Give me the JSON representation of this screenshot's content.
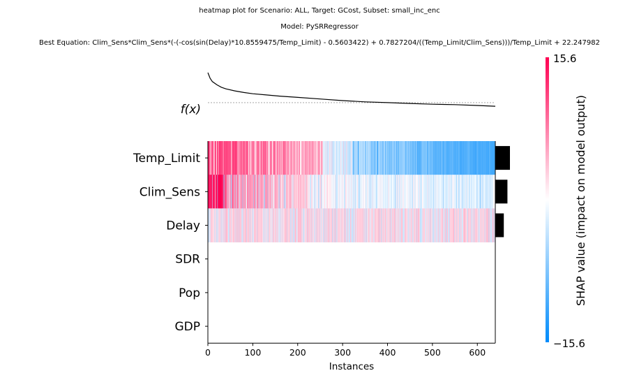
{
  "titles": {
    "line1": "heatmap plot for Scenario: ALL, Target: GCost, Subset: small_inc_enc",
    "line2": "Model: PySRRegressor",
    "line3": "Best Equation: Clim_Sens*Clim_Sens*(-(-cos(sin(Delay)*10.8559475/Temp_Limit) - 0.5603422) + 0.7827204/((Temp_Limit/Clim_Sens)))/Temp_Limit + 22.247982"
  },
  "chart_data": {
    "type": "heatmap",
    "title": "heatmap plot for Scenario: ALL, Target: GCost, Subset: small_inc_enc",
    "xlabel": "Instances",
    "fx_label": "f(x)",
    "xlim": [
      0,
      640
    ],
    "x_ticks": [
      0,
      100,
      200,
      300,
      400,
      500,
      600
    ],
    "features": [
      "Temp_Limit",
      "Clim_Sens",
      "Delay",
      "SDR",
      "Pop",
      "GDP"
    ],
    "mean_abs_shap": [
      1.0,
      0.83,
      0.58,
      0,
      0,
      0
    ],
    "colorbar": {
      "label": "SHAP value (impact on model output)",
      "min": -15.6,
      "max": 15.6,
      "min_label": "−15.6",
      "max_label": "15.6",
      "neg_color": "#008bfb",
      "pos_color": "#ff0052"
    },
    "fx_curve": {
      "x": [
        0,
        5,
        10,
        20,
        30,
        40,
        60,
        80,
        100,
        130,
        160,
        200,
        250,
        300,
        350,
        400,
        450,
        500,
        550,
        600,
        640
      ],
      "y": [
        1.0,
        0.86,
        0.78,
        0.7,
        0.64,
        0.6,
        0.55,
        0.51,
        0.48,
        0.45,
        0.42,
        0.39,
        0.35,
        0.31,
        0.28,
        0.26,
        0.24,
        0.22,
        0.21,
        0.19,
        0.17
      ],
      "baseline": 0.26
    }
  }
}
